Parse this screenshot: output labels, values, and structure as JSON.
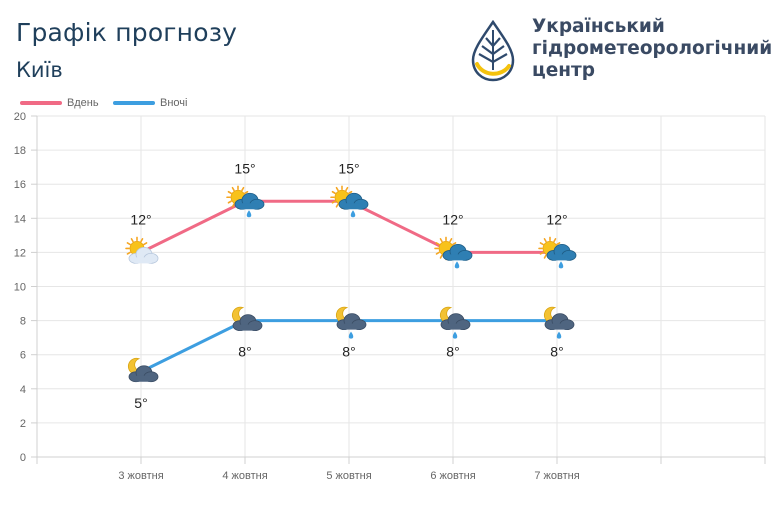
{
  "header": {
    "title": "Графік прогнозу",
    "city": "Київ"
  },
  "brand": {
    "line1": "Український",
    "line2": "гідрометеорологічний",
    "line3": "центр",
    "logo_icon": "water-drop-logo-icon",
    "colors": {
      "text": "#3a4a63",
      "drop": "#2f4a6d",
      "arc": "#f4c20d"
    }
  },
  "chart_data": {
    "type": "line",
    "categories": [
      "3 жовтня",
      "4 жовтня",
      "5 жовтня",
      "6 жовтня",
      "7 жовтня"
    ],
    "x_ticks_total": 7,
    "ylim": [
      0,
      20
    ],
    "yticks": [
      0,
      2,
      4,
      6,
      8,
      10,
      12,
      14,
      16,
      18,
      20
    ],
    "grid": true,
    "legend_position": "top-left",
    "series": [
      {
        "name": "Вдень",
        "color": "#f06a85",
        "values": [
          12,
          15,
          15,
          12,
          12
        ],
        "labels": [
          "12°",
          "15°",
          "15°",
          "12°",
          "12°"
        ],
        "label_position": "above",
        "icons": [
          "sun-cloud-icon",
          "sun-rain-cloud-icon",
          "sun-rain-cloud-icon",
          "sun-rain-cloud-icon",
          "sun-rain-cloud-icon"
        ]
      },
      {
        "name": "Вночі",
        "color": "#3d9ee0",
        "values": [
          5,
          8,
          8,
          8,
          8
        ],
        "labels": [
          "5°",
          "8°",
          "8°",
          "8°",
          "8°"
        ],
        "label_position": "below",
        "icons": [
          "moon-cloud-icon",
          "moon-cloud-icon",
          "moon-rain-cloud-icon",
          "moon-rain-cloud-icon",
          "moon-rain-cloud-icon"
        ]
      }
    ]
  }
}
